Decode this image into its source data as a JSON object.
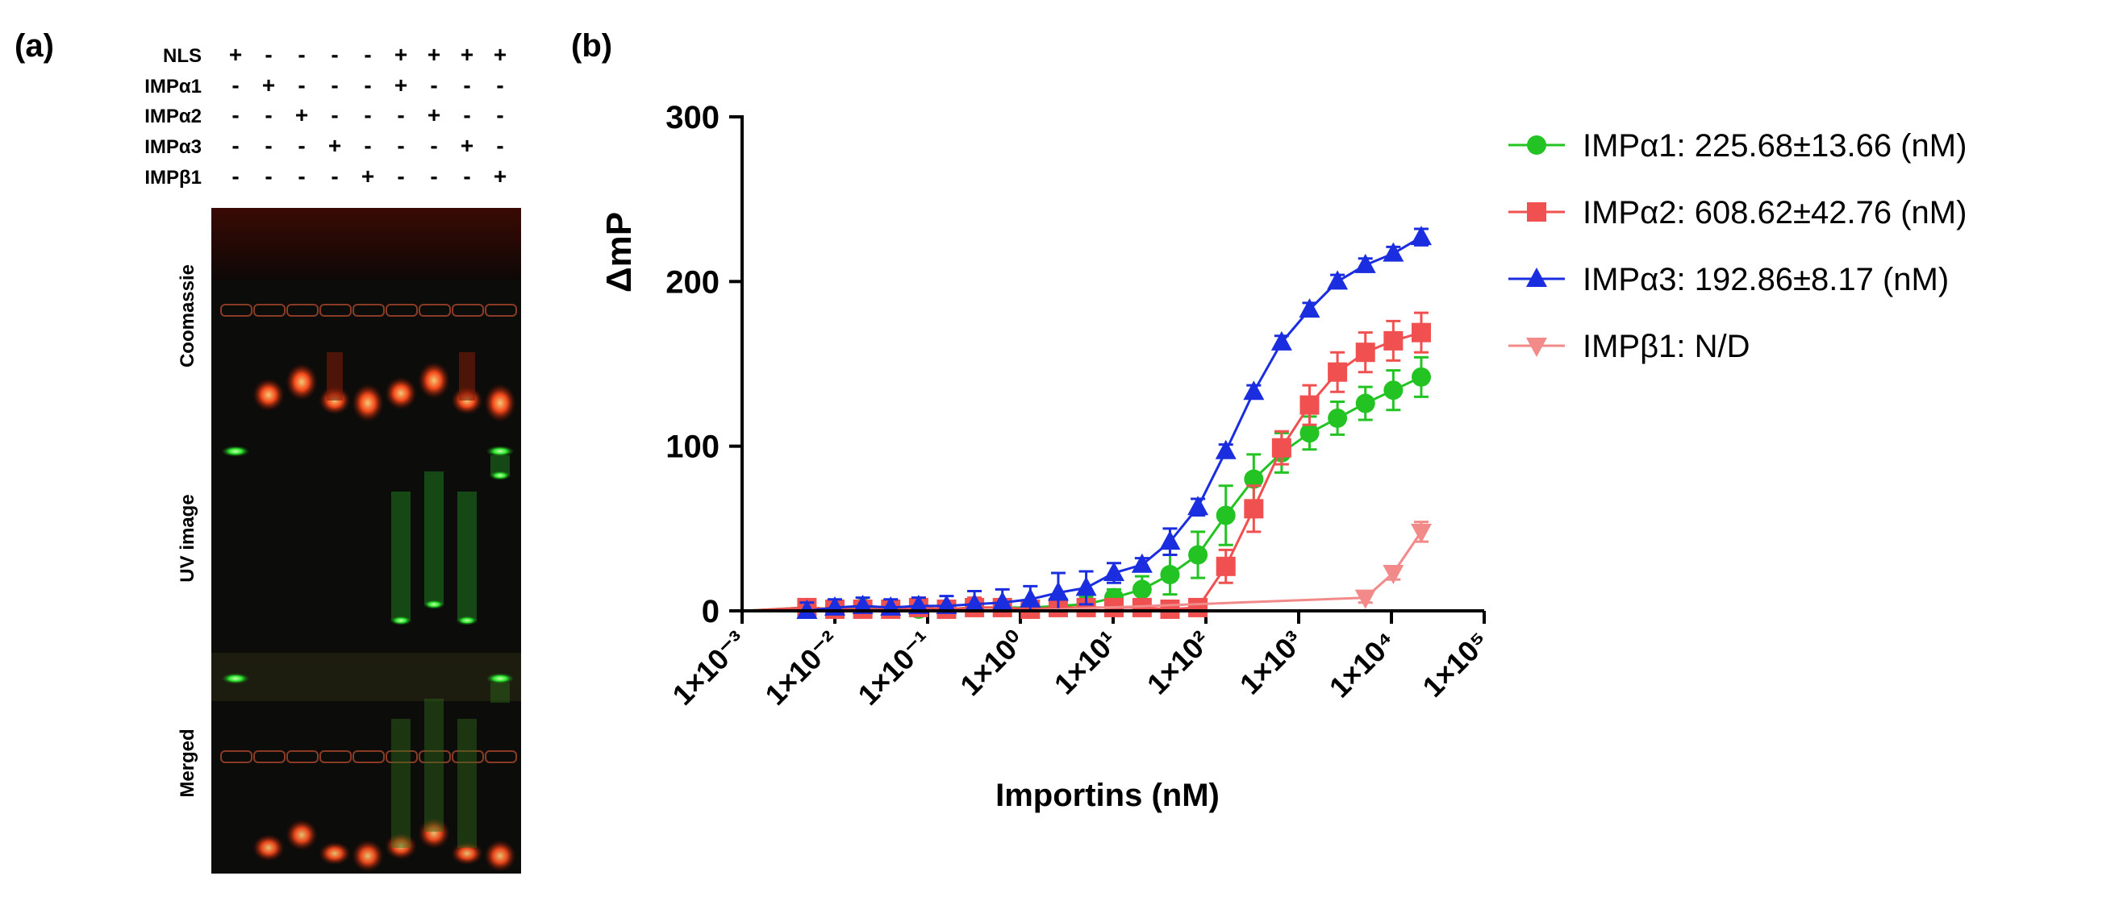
{
  "panel_a": {
    "label": "(a)",
    "rows": [
      {
        "name": "NLS",
        "signs": [
          "+",
          "-",
          "-",
          "-",
          "-",
          "+",
          "+",
          "+",
          "+"
        ]
      },
      {
        "name": "IMPα1",
        "signs": [
          "-",
          "+",
          "-",
          "-",
          "-",
          "+",
          "-",
          "-",
          "-"
        ]
      },
      {
        "name": "IMPα2",
        "signs": [
          "-",
          "-",
          "+",
          "-",
          "-",
          "-",
          "+",
          "-",
          "-"
        ]
      },
      {
        "name": "IMPα3",
        "signs": [
          "-",
          "-",
          "-",
          "+",
          "-",
          "-",
          "-",
          "+",
          "-"
        ]
      },
      {
        "name": "IMPβ1",
        "signs": [
          "-",
          "-",
          "-",
          "-",
          "+",
          "-",
          "-",
          "-",
          "+"
        ]
      }
    ],
    "gel_labels": [
      "Coomassie",
      "UV image",
      "Merged"
    ],
    "colors": {
      "coomassie_band": "#ff3a1a",
      "uv_band": "#2ee82e",
      "gel_bg": "#0c0c0a"
    },
    "bands": [
      {
        "lane": 1,
        "coomassie": 0.0,
        "uv": 0.0
      },
      {
        "lane": 2,
        "coomassie": 0.75,
        "uv": 0.0
      },
      {
        "lane": 3,
        "coomassie": 0.95,
        "uv": 0.0
      },
      {
        "lane": 4,
        "coomassie": 0.55,
        "uv": 0.0
      },
      {
        "lane": 5,
        "coomassie": 1.0,
        "uv": 0.0
      },
      {
        "lane": 6,
        "coomassie": 0.75,
        "uv": 0.9
      },
      {
        "lane": 7,
        "coomassie": 0.95,
        "uv": 0.7
      },
      {
        "lane": 8,
        "coomassie": 0.55,
        "uv": 0.8
      },
      {
        "lane": 9,
        "coomassie": 1.0,
        "uv": 0.9
      }
    ]
  },
  "chart_data": {
    "panel_label": "(b)",
    "type": "scatter",
    "title": "",
    "xlabel": "Importins (nM)",
    "ylabel": "ΔmP",
    "xscale": "log",
    "xlim": [
      0.001,
      100000
    ],
    "ylim": [
      0,
      300
    ],
    "yticks": [
      0,
      100,
      200,
      300
    ],
    "xtick_labels": [
      "1×10⁻³",
      "1×10⁻²",
      "1×10⁻¹",
      "1×10⁰",
      "1×10¹",
      "1×10²",
      "1×10³",
      "1×10⁴",
      "1×10⁵"
    ],
    "legend_position": "right",
    "grid": false,
    "series": [
      {
        "name": "IMPα1: 225.68±13.66 (nM)",
        "color": "#22c322",
        "marker": "circle",
        "x": [
          0.005,
          0.01,
          0.02,
          0.04,
          0.08,
          0.16,
          0.32,
          0.64,
          1.28,
          2.56,
          5.12,
          10.2,
          20.5,
          41,
          82,
          164,
          328,
          655,
          1310,
          2620,
          5240,
          10480,
          20970
        ],
        "y": [
          2,
          1,
          2,
          1,
          1,
          1,
          2,
          2,
          2,
          3,
          4,
          8,
          13,
          22,
          34,
          58,
          80,
          96,
          108,
          117,
          126,
          134,
          142
        ],
        "err": [
          3,
          3,
          3,
          3,
          3,
          3,
          3,
          4,
          4,
          4,
          5,
          5,
          8,
          12,
          14,
          18,
          15,
          12,
          10,
          10,
          10,
          12,
          12
        ]
      },
      {
        "name": "IMPα2: 608.62±42.76 (nM)",
        "color": "#f05050",
        "marker": "square",
        "x": [
          0.005,
          0.01,
          0.02,
          0.04,
          0.08,
          0.16,
          0.32,
          0.64,
          1.28,
          2.56,
          5.12,
          10.2,
          20.5,
          41,
          82,
          164,
          328,
          655,
          1310,
          2620,
          5240,
          10480,
          20970
        ],
        "y": [
          2,
          1,
          1,
          1,
          2,
          1,
          2,
          2,
          1,
          2,
          2,
          2,
          2,
          1,
          2,
          27,
          62,
          99,
          125,
          145,
          157,
          164,
          169
        ],
        "err": [
          3,
          3,
          3,
          3,
          6,
          4,
          6,
          5,
          5,
          6,
          4,
          4,
          3,
          3,
          4,
          10,
          14,
          10,
          12,
          12,
          12,
          12,
          12
        ]
      },
      {
        "name": "IMPα3: 192.86±8.17 (nM)",
        "color": "#1a2ee0",
        "marker": "triangle-up",
        "x": [
          0.005,
          0.01,
          0.02,
          0.04,
          0.08,
          0.16,
          0.32,
          0.64,
          1.28,
          2.56,
          5.12,
          10.2,
          20.5,
          41,
          82,
          164,
          328,
          655,
          1310,
          2620,
          5240,
          10480,
          20970
        ],
        "y": [
          0,
          2,
          3,
          2,
          3,
          3,
          4,
          5,
          7,
          11,
          14,
          23,
          28,
          42,
          63,
          97,
          133,
          163,
          183,
          200,
          210,
          217,
          227
        ],
        "err": [
          5,
          5,
          5,
          5,
          5,
          6,
          8,
          8,
          8,
          12,
          10,
          6,
          4,
          8,
          5,
          4,
          4,
          4,
          4,
          4,
          4,
          4,
          5
        ]
      },
      {
        "name": "IMPβ1: N/D",
        "color": "#f28a8a",
        "marker": "triangle-down",
        "x": [
          5240,
          10480,
          20970
        ],
        "y": [
          8,
          23,
          48
        ],
        "err": [
          3,
          4,
          6
        ]
      }
    ]
  }
}
